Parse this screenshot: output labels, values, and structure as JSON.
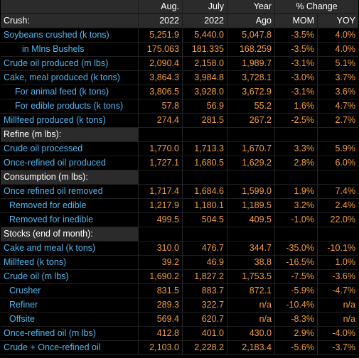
{
  "header": {
    "row1": {
      "label": "",
      "aug": "Aug.",
      "jul": "July",
      "yr": "Year",
      "pct": "% Change"
    },
    "row2": {
      "label": "Crush:",
      "aug": "2022",
      "jul": "2022",
      "yr": "Ago",
      "mom": "MOM",
      "yoy": "YOY"
    }
  },
  "rows": [
    {
      "type": "data",
      "indent": 0,
      "label": "Soybeans crushed (k tons)",
      "aug": "5,251.9",
      "jul": "5,440.0",
      "yr": "5,047.8",
      "mom": "-3.5%",
      "yoy": "4.0%"
    },
    {
      "type": "data",
      "indent": 3,
      "label": "in Mlns Bushels",
      "aug": "175.063",
      "jul": "181.335",
      "yr": "168.259",
      "mom": "-3.5%",
      "yoy": "4.0%"
    },
    {
      "type": "data",
      "indent": 0,
      "label": "Crude oil produced (m lbs)",
      "aug": "2,090.4",
      "jul": "2,158.0",
      "yr": "1,989.7",
      "mom": "-3.1%",
      "yoy": "5.1%"
    },
    {
      "type": "data",
      "indent": 0,
      "label": "Cake, meal produced (k tons)",
      "aug": "3,864.3",
      "jul": "3,984.8",
      "yr": "3,728.1",
      "mom": "-3.0%",
      "yoy": "3.7%"
    },
    {
      "type": "data",
      "indent": 2,
      "label": "For animal feed (k tons)",
      "aug": "3,806.5",
      "jul": "3,928.0",
      "yr": "3,672.9",
      "mom": "-3.1%",
      "yoy": "3.6%"
    },
    {
      "type": "data",
      "indent": 2,
      "label": "For edible products (k tons)",
      "aug": "57.8",
      "jul": "56.9",
      "yr": "55.2",
      "mom": "1.6%",
      "yoy": "4.7%"
    },
    {
      "type": "data",
      "indent": 0,
      "label": "Millfeed produced (k tons)",
      "aug": "274.4",
      "jul": "281.5",
      "yr": "267.2",
      "mom": "-2.5%",
      "yoy": "2.7%"
    },
    {
      "type": "section",
      "label": "Refine (m lbs):"
    },
    {
      "type": "data",
      "indent": 0,
      "label": "Crude oil processed",
      "aug": "1,770.0",
      "jul": "1,713.3",
      "yr": "1,670.7",
      "mom": "3.3%",
      "yoy": "5.9%"
    },
    {
      "type": "data",
      "indent": 0,
      "label": "Once-refined oil produced",
      "aug": "1,727.1",
      "jul": "1,680.5",
      "yr": "1,629.2",
      "mom": "2.8%",
      "yoy": "6.0%"
    },
    {
      "type": "section",
      "label": "Consumption (m lbs):"
    },
    {
      "type": "data",
      "indent": 0,
      "label": "Once refined oil removed",
      "aug": "1,717.4",
      "jul": "1,684.6",
      "yr": "1,599.0",
      "mom": "1.9%",
      "yoy": "7.4%"
    },
    {
      "type": "data",
      "indent": 1,
      "label": "Removed for edible",
      "aug": "1,217.9",
      "jul": "1,180.1",
      "yr": "1,189.5",
      "mom": "3.2%",
      "yoy": "2.4%"
    },
    {
      "type": "data",
      "indent": 1,
      "label": "Removed for inedible",
      "aug": "499.5",
      "jul": "504.5",
      "yr": "409.5",
      "mom": "-1.0%",
      "yoy": "22.0%"
    },
    {
      "type": "section",
      "label": "Stocks (end of month):"
    },
    {
      "type": "data",
      "indent": 0,
      "label": "Cake and meal (k tons)",
      "aug": "310.0",
      "jul": "476.7",
      "yr": "344.7",
      "mom": "-35.0%",
      "yoy": "-10.1%"
    },
    {
      "type": "data",
      "indent": 0,
      "label": "Millfeed (k tons)",
      "aug": "39.2",
      "jul": "46.9",
      "yr": "38.8",
      "mom": "-16.5%",
      "yoy": "1.0%"
    },
    {
      "type": "data",
      "indent": 0,
      "label": "Crude oil (m lbs)",
      "aug": "1,690.2",
      "jul": "1,827.2",
      "yr": "1,753.5",
      "mom": "-7.5%",
      "yoy": "-3.6%"
    },
    {
      "type": "data",
      "indent": 1,
      "label": "Crusher",
      "aug": "831.5",
      "jul": "883.7",
      "yr": "872.1",
      "mom": "-5.9%",
      "yoy": "-4.7%"
    },
    {
      "type": "data",
      "indent": 1,
      "label": "Refiner",
      "aug": "289.3",
      "jul": "322.7",
      "yr": "n/a",
      "mom": "-10.4%",
      "yoy": "n/a"
    },
    {
      "type": "data",
      "indent": 1,
      "label": "Offsite",
      "aug": "569.4",
      "jul": "620.7",
      "yr": "n/a",
      "mom": "-8.3%",
      "yoy": "n/a"
    },
    {
      "type": "data",
      "indent": 0,
      "label": "Once-refined oil (m lbs)",
      "aug": "412.8",
      "jul": "401.0",
      "yr": "430.0",
      "mom": "2.9%",
      "yoy": "-4.0%"
    },
    {
      "type": "data",
      "indent": 0,
      "label": "Crude + Once-refined oil",
      "aug": "2,103.0",
      "jul": "2,228.2",
      "yr": "2,183.4",
      "mom": "-5.6%",
      "yoy": "-3.7%"
    }
  ],
  "colors": {
    "background": "#000000",
    "label": "#4fb6ef",
    "value": "#f39c34",
    "header_bg": "#2b2b2b",
    "header_text": "#ffffff"
  }
}
